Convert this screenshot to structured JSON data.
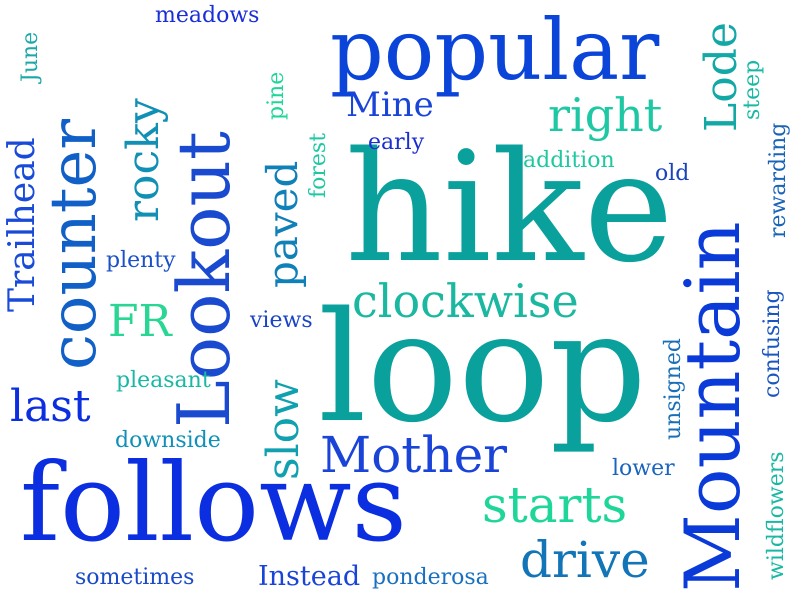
{
  "background": "#ffffff",
  "palette": [
    "#0a2ee0",
    "#1a56d6",
    "#0f8fb0",
    "#0aa8a0",
    "#1fd69a"
  ],
  "words": [
    {
      "key": "hike",
      "text": "hike",
      "color": "#0aa09c"
    },
    {
      "key": "loop",
      "text": "loop",
      "color": "#0aa09c"
    },
    {
      "key": "follows",
      "text": "follows",
      "color": "#0a2ee0"
    },
    {
      "key": "popular",
      "text": "popular",
      "color": "#0a44d8"
    },
    {
      "key": "mountain",
      "text": "Mountain",
      "color": "#0a3ad8"
    },
    {
      "key": "lookout",
      "text": "Lookout",
      "color": "#1a4ad0"
    },
    {
      "key": "counter",
      "text": "counter",
      "color": "#1060c8"
    },
    {
      "key": "mother",
      "text": "Mother",
      "color": "#1a44d8"
    },
    {
      "key": "drive",
      "text": "drive",
      "color": "#1275b8"
    },
    {
      "key": "starts",
      "text": "starts",
      "color": "#1fd69a"
    },
    {
      "key": "clockwise",
      "text": "clockwise",
      "color": "#1ab8a0"
    },
    {
      "key": "right",
      "text": "right",
      "color": "#1fc8a4"
    },
    {
      "key": "last",
      "text": "last",
      "color": "#0a2ee0"
    },
    {
      "key": "fr",
      "text": "FR",
      "color": "#2ad694"
    },
    {
      "key": "rocky",
      "text": "rocky",
      "color": "#1090b4"
    },
    {
      "key": "paved",
      "text": "paved",
      "color": "#1080b8"
    },
    {
      "key": "slow",
      "text": "slow",
      "color": "#10a0b0"
    },
    {
      "key": "lode",
      "text": "Lode",
      "color": "#12a8a6"
    },
    {
      "key": "trailhead",
      "text": "Trailhead",
      "color": "#1a4ad8"
    },
    {
      "key": "mine",
      "text": "Mine",
      "color": "#1a44d8"
    },
    {
      "key": "instead",
      "text": "Instead",
      "color": "#1a44d8"
    },
    {
      "key": "addition",
      "text": "addition",
      "color": "#1fc8a0"
    },
    {
      "key": "early",
      "text": "early",
      "color": "#1a2ed0"
    },
    {
      "key": "old",
      "text": "old",
      "color": "#1a44b8"
    },
    {
      "key": "meadows",
      "text": "meadows",
      "color": "#1a2ed8"
    },
    {
      "key": "plenty",
      "text": "plenty",
      "color": "#1a50c8"
    },
    {
      "key": "views",
      "text": "views",
      "color": "#1a44c8"
    },
    {
      "key": "pleasant",
      "text": "pleasant",
      "color": "#1ab8a4"
    },
    {
      "key": "downside",
      "text": "downside",
      "color": "#1090b8"
    },
    {
      "key": "lower",
      "text": "lower",
      "color": "#1a64c0"
    },
    {
      "key": "sometimes",
      "text": "sometimes",
      "color": "#1a4ac8"
    },
    {
      "key": "ponderosa",
      "text": "ponderosa",
      "color": "#1a70c0"
    },
    {
      "key": "june",
      "text": "June",
      "color": "#1aa8a8"
    },
    {
      "key": "pine",
      "text": "pine",
      "color": "#1fd69a"
    },
    {
      "key": "forest",
      "text": "forest",
      "color": "#1fc8a4"
    },
    {
      "key": "unsigned",
      "text": "unsigned",
      "color": "#1a70b8"
    },
    {
      "key": "steep",
      "text": "steep",
      "color": "#1ab8a4"
    },
    {
      "key": "rewarding",
      "text": "rewarding",
      "color": "#1a64b8"
    },
    {
      "key": "confusing",
      "text": "confusing",
      "color": "#1a56c0"
    },
    {
      "key": "wildflowers",
      "text": "wildflowers",
      "color": "#1ab8a4"
    }
  ]
}
